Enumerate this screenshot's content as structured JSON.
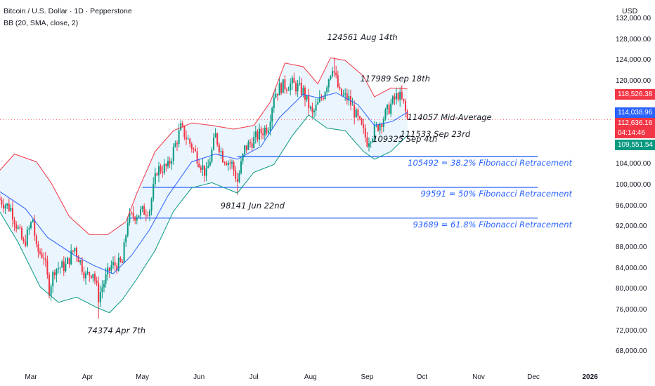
{
  "header": {
    "title": "Bitcoin / U.S. Dollar · 1D · Pepperstone",
    "indicator": "BB (20, SMA, close, 2)"
  },
  "price_axis": {
    "currency": "USD",
    "ticks": [
      {
        "value": 68000,
        "label": "68,000.00"
      },
      {
        "value": 72000,
        "label": "72,000.00"
      },
      {
        "value": 76000,
        "label": "76,000.00"
      },
      {
        "value": 80000,
        "label": "80,000.00"
      },
      {
        "value": 84000,
        "label": "84,000.00"
      },
      {
        "value": 88000,
        "label": "88,000.00"
      },
      {
        "value": 92000,
        "label": "92,000.00"
      },
      {
        "value": 96000,
        "label": "96,000.00"
      },
      {
        "value": 100000,
        "label": "100,000.00"
      },
      {
        "value": 104000,
        "label": "104,000.00"
      },
      {
        "value": 120000,
        "label": "120,000.00"
      },
      {
        "value": 124000,
        "label": "124,000.00"
      },
      {
        "value": 128000,
        "label": "128,000.00"
      },
      {
        "value": 132000,
        "label": "132,000.00"
      }
    ]
  },
  "time_axis": {
    "ticks": [
      {
        "label": "Mar",
        "date": "2025-03-01",
        "bold": false
      },
      {
        "label": "Apr",
        "date": "2025-04-01",
        "bold": false
      },
      {
        "label": "May",
        "date": "2025-05-01",
        "bold": false
      },
      {
        "label": "Jun",
        "date": "2025-06-01",
        "bold": false
      },
      {
        "label": "Jul",
        "date": "2025-07-01",
        "bold": false
      },
      {
        "label": "Aug",
        "date": "2025-08-01",
        "bold": false
      },
      {
        "label": "Sep",
        "date": "2025-09-01",
        "bold": false
      },
      {
        "label": "Oct",
        "date": "2025-10-01",
        "bold": false
      },
      {
        "label": "Nov",
        "date": "2025-11-01",
        "bold": false
      },
      {
        "label": "Dec",
        "date": "2025-12-01",
        "bold": false
      },
      {
        "label": "2026",
        "date": "2026-01-01",
        "bold": true
      }
    ]
  },
  "price_labels": [
    {
      "text": "118,526.38",
      "value": 118526.38,
      "color": "#f23645"
    },
    {
      "text": "114,038.96",
      "value": 114038.96,
      "color": "#2962ff"
    },
    {
      "text": "112,636.16",
      "value": 112636.16,
      "color": "#f23645"
    },
    {
      "text": "04:14:46",
      "value": 111200,
      "color": "#f23645"
    },
    {
      "text": "109,551.54",
      "value": 109551.54,
      "color": "#089981"
    }
  ],
  "annotations": [
    {
      "text": "124561 Aug 14th",
      "price": 124561,
      "date": "2025-08-14"
    },
    {
      "text": "117989 Sep 18th",
      "price": 117989,
      "date": "2025-09-18"
    },
    {
      "text": "114057 Mid-Average",
      "price": 114057,
      "date": "2025-09-23"
    },
    {
      "text": "111533 Sep 23rd",
      "price": 111533,
      "date": "2025-09-23"
    },
    {
      "text": "109325 Sep 4th",
      "price": 109325,
      "date": "2025-09-04"
    },
    {
      "text": "98141 Jun 22nd",
      "price": 98141,
      "date": "2025-06-22"
    },
    {
      "text": "74374 Apr 7th",
      "price": 74374,
      "date": "2025-04-07"
    }
  ],
  "fib_levels": [
    {
      "text": "105492 = 38.2% Fibonacci Retracement",
      "value": 105492,
      "start": "2025-06-22"
    },
    {
      "text": "99591 = 50% Fibonacci Retracement",
      "value": 99591,
      "start": "2025-05-01"
    },
    {
      "text": "93689 = 61.8% Fibonacci Retracement",
      "value": 93689,
      "start": "2025-04-24"
    }
  ],
  "chart_data": {
    "type": "candlestick",
    "symbol": "Bitcoin / U.S. Dollar",
    "timeframe": "1D",
    "indicator": "BB (20, SMA, close, 2)",
    "ylim": [
      66000,
      134000
    ],
    "xlim": [
      "2025-02-11",
      "2026-01-18"
    ],
    "grid": false,
    "colors": {
      "up": "#089981",
      "down": "#f23645",
      "basis": "#2962ff",
      "upper": "#f23645",
      "lower": "#089981",
      "fill": "#e3f2fd",
      "fib": "#2962ff",
      "last_price_line": "#f23645"
    },
    "last_price": 112636.16,
    "close_path": [
      [
        "2025-02-11",
        97500
      ],
      [
        "2025-02-18",
        95500
      ],
      [
        "2025-02-25",
        88500
      ],
      [
        "2025-03-02",
        93500
      ],
      [
        "2025-03-04",
        87500
      ],
      [
        "2025-03-08",
        86500
      ],
      [
        "2025-03-11",
        80000
      ],
      [
        "2025-03-14",
        84000
      ],
      [
        "2025-03-20",
        84500
      ],
      [
        "2025-03-25",
        88000
      ],
      [
        "2025-03-31",
        82500
      ],
      [
        "2025-04-04",
        83500
      ],
      [
        "2025-04-07",
        78500
      ],
      [
        "2025-04-09",
        80500
      ],
      [
        "2025-04-14",
        84500
      ],
      [
        "2025-04-20",
        85000
      ],
      [
        "2025-04-23",
        93500
      ],
      [
        "2025-04-28",
        94500
      ],
      [
        "2025-05-05",
        95500
      ],
      [
        "2025-05-09",
        103000
      ],
      [
        "2025-05-15",
        103500
      ],
      [
        "2025-05-22",
        111000
      ],
      [
        "2025-05-28",
        107500
      ],
      [
        "2025-06-05",
        102000
      ],
      [
        "2025-06-10",
        109500
      ],
      [
        "2025-06-14",
        105500
      ],
      [
        "2025-06-19",
        104000
      ],
      [
        "2025-06-22",
        100800
      ],
      [
        "2025-06-26",
        107000
      ],
      [
        "2025-07-03",
        109500
      ],
      [
        "2025-07-09",
        111500
      ],
      [
        "2025-07-12",
        117500
      ],
      [
        "2025-07-16",
        119000
      ],
      [
        "2025-07-22",
        119500
      ],
      [
        "2025-07-28",
        118000
      ],
      [
        "2025-08-02",
        113500
      ],
      [
        "2025-08-08",
        117500
      ],
      [
        "2025-08-13",
        123000
      ],
      [
        "2025-08-17",
        117500
      ],
      [
        "2025-08-22",
        116500
      ],
      [
        "2025-08-27",
        112500
      ],
      [
        "2025-09-01",
        108500
      ],
      [
        "2025-09-05",
        110500
      ],
      [
        "2025-09-10",
        113000
      ],
      [
        "2025-09-14",
        115500
      ],
      [
        "2025-09-18",
        117500
      ],
      [
        "2025-09-21",
        115500
      ],
      [
        "2025-09-23",
        112600
      ]
    ],
    "bollinger_bands": {
      "basis": [
        [
          "2025-02-11",
          99000
        ],
        [
          "2025-02-26",
          95500
        ],
        [
          "2025-03-10",
          90000
        ],
        [
          "2025-03-25",
          86500
        ],
        [
          "2025-04-05",
          84500
        ],
        [
          "2025-04-15",
          83000
        ],
        [
          "2025-04-25",
          86500
        ],
        [
          "2025-05-05",
          91500
        ],
        [
          "2025-05-15",
          98000
        ],
        [
          "2025-05-28",
          104500
        ],
        [
          "2025-06-10",
          106000
        ],
        [
          "2025-06-22",
          105000
        ],
        [
          "2025-07-05",
          107500
        ],
        [
          "2025-07-15",
          113000
        ],
        [
          "2025-07-28",
          117500
        ],
        [
          "2025-08-05",
          116800
        ],
        [
          "2025-08-15",
          117800
        ],
        [
          "2025-08-27",
          115500
        ],
        [
          "2025-09-05",
          111500
        ],
        [
          "2025-09-15",
          112300
        ],
        [
          "2025-09-23",
          114039
        ]
      ],
      "upper": [
        [
          "2025-02-11",
          102500
        ],
        [
          "2025-02-20",
          106000
        ],
        [
          "2025-03-04",
          104500
        ],
        [
          "2025-03-12",
          100500
        ],
        [
          "2025-03-22",
          94000
        ],
        [
          "2025-04-02",
          90500
        ],
        [
          "2025-04-12",
          90500
        ],
        [
          "2025-04-22",
          93000
        ],
        [
          "2025-04-28",
          98500
        ],
        [
          "2025-05-08",
          106500
        ],
        [
          "2025-05-18",
          110500
        ],
        [
          "2025-05-28",
          112000
        ],
        [
          "2025-06-08",
          111500
        ],
        [
          "2025-06-20",
          110800
        ],
        [
          "2025-07-01",
          111500
        ],
        [
          "2025-07-10",
          116000
        ],
        [
          "2025-07-18",
          123500
        ],
        [
          "2025-07-28",
          122800
        ],
        [
          "2025-08-05",
          119500
        ],
        [
          "2025-08-12",
          124500
        ],
        [
          "2025-08-20",
          124000
        ],
        [
          "2025-08-30",
          121000
        ],
        [
          "2025-09-05",
          117000
        ],
        [
          "2025-09-14",
          118700
        ],
        [
          "2025-09-23",
          118526
        ]
      ],
      "lower": [
        [
          "2025-02-11",
          95500
        ],
        [
          "2025-02-22",
          89000
        ],
        [
          "2025-03-06",
          80500
        ],
        [
          "2025-03-16",
          77500
        ],
        [
          "2025-03-26",
          78500
        ],
        [
          "2025-04-06",
          76500
        ],
        [
          "2025-04-13",
          75500
        ],
        [
          "2025-04-20",
          78000
        ],
        [
          "2025-04-28",
          82000
        ],
        [
          "2025-05-08",
          87500
        ],
        [
          "2025-05-18",
          95000
        ],
        [
          "2025-05-28",
          99500
        ],
        [
          "2025-06-08",
          100500
        ],
        [
          "2025-06-22",
          98500
        ],
        [
          "2025-07-01",
          102500
        ],
        [
          "2025-07-12",
          104000
        ],
        [
          "2025-07-22",
          109500
        ],
        [
          "2025-07-31",
          113500
        ],
        [
          "2025-08-10",
          111000
        ],
        [
          "2025-08-20",
          110500
        ],
        [
          "2025-08-30",
          106500
        ],
        [
          "2025-09-05",
          105000
        ],
        [
          "2025-09-14",
          106500
        ],
        [
          "2025-09-23",
          109552
        ]
      ]
    }
  }
}
